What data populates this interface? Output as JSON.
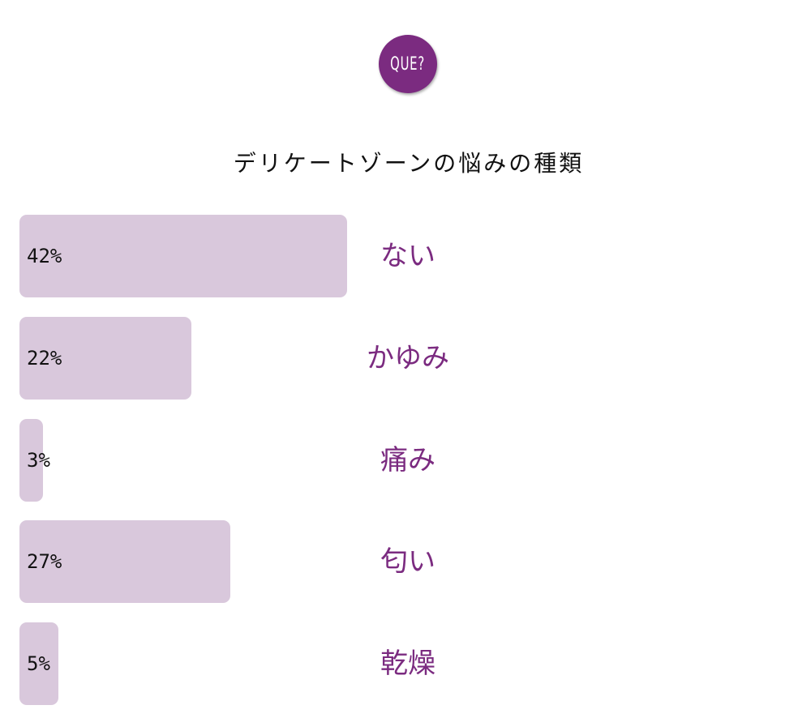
{
  "logo": {
    "text": "QUE?",
    "color": "#7b2b80"
  },
  "chart_data": {
    "type": "bar",
    "orientation": "horizontal",
    "title": "デリケートゾーンの悩みの種類",
    "categories": [
      "ない",
      "かゆみ",
      "痛み",
      "匂い",
      "乾燥"
    ],
    "values": [
      42,
      22,
      3,
      27,
      5
    ],
    "value_labels": [
      "42%",
      "22%",
      "3%",
      "27%",
      "5%"
    ],
    "unit": "%",
    "bar_color": "#d9c8dc",
    "label_color": "#7b2b80",
    "grid": false
  }
}
